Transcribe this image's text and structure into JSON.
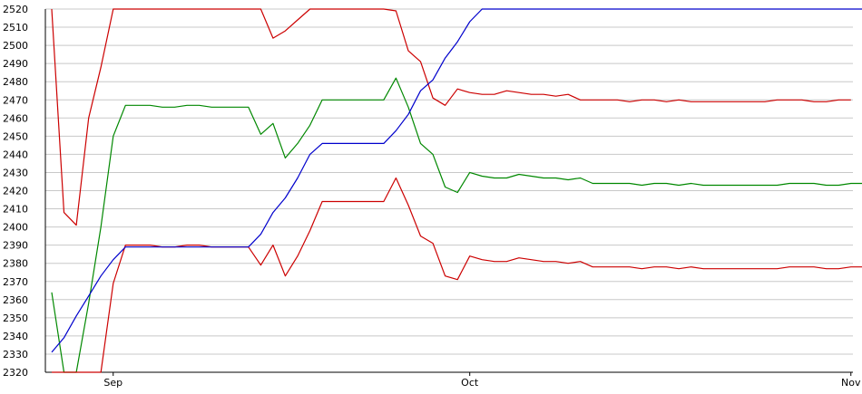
{
  "chart_data": {
    "type": "line",
    "ylim": [
      2320,
      2520
    ],
    "y_ticks": [
      "2320",
      "2330",
      "2340",
      "2350",
      "2360",
      "2370",
      "2380",
      "2390",
      "2400",
      "2410",
      "2420",
      "2430",
      "2440",
      "2450",
      "2460",
      "2470",
      "2480",
      "2490",
      "2500",
      "2510",
      "2520"
    ],
    "x_ticks": [
      "Sep",
      "Oct",
      "Nov"
    ],
    "grid": true,
    "series": [
      {
        "color": "#cc0000",
        "points": [
          [
            0,
            2520
          ],
          [
            1,
            2408
          ],
          [
            2,
            2401
          ],
          [
            3,
            2460
          ],
          [
            4,
            2488
          ],
          [
            5,
            2520
          ],
          [
            6,
            2520
          ],
          [
            7,
            2520
          ],
          [
            8,
            2520
          ],
          [
            9,
            2520
          ],
          [
            10,
            2520
          ],
          [
            11,
            2520
          ],
          [
            12,
            2520
          ],
          [
            13,
            2520
          ],
          [
            14,
            2520
          ],
          [
            15,
            2520
          ],
          [
            16,
            2520
          ],
          [
            17,
            2520
          ],
          [
            18,
            2504
          ],
          [
            19,
            2508
          ],
          [
            20,
            2514
          ],
          [
            21,
            2520
          ],
          [
            22,
            2520
          ],
          [
            23,
            2520
          ],
          [
            24,
            2520
          ],
          [
            25,
            2520
          ],
          [
            26,
            2520
          ],
          [
            27,
            2520
          ],
          [
            28,
            2519
          ],
          [
            29,
            2497
          ],
          [
            30,
            2491
          ],
          [
            31,
            2471
          ],
          [
            32,
            2467
          ],
          [
            33,
            2476
          ],
          [
            34,
            2474
          ],
          [
            35,
            2473
          ],
          [
            36,
            2473
          ],
          [
            37,
            2475
          ],
          [
            38,
            2474
          ],
          [
            39,
            2473
          ],
          [
            40,
            2473
          ],
          [
            41,
            2472
          ],
          [
            42,
            2473
          ],
          [
            43,
            2470
          ],
          [
            44,
            2470
          ],
          [
            45,
            2470
          ],
          [
            46,
            2470
          ],
          [
            47,
            2469
          ],
          [
            48,
            2470
          ],
          [
            49,
            2470
          ],
          [
            50,
            2469
          ],
          [
            51,
            2470
          ],
          [
            52,
            2469
          ],
          [
            53,
            2469
          ],
          [
            54,
            2469
          ],
          [
            55,
            2469
          ],
          [
            56,
            2469
          ],
          [
            57,
            2469
          ],
          [
            58,
            2469
          ],
          [
            59,
            2470
          ],
          [
            60,
            2470
          ],
          [
            61,
            2470
          ],
          [
            62,
            2469
          ],
          [
            63,
            2469
          ],
          [
            64,
            2470
          ],
          [
            65,
            2470
          ]
        ]
      },
      {
        "color": "#008800",
        "points": [
          [
            0,
            2364
          ],
          [
            1,
            2320
          ],
          [
            2,
            2320
          ],
          [
            3,
            2358
          ],
          [
            4,
            2400
          ],
          [
            5,
            2450
          ],
          [
            6,
            2467
          ],
          [
            7,
            2467
          ],
          [
            8,
            2467
          ],
          [
            9,
            2466
          ],
          [
            10,
            2466
          ],
          [
            11,
            2467
          ],
          [
            12,
            2467
          ],
          [
            13,
            2466
          ],
          [
            14,
            2466
          ],
          [
            15,
            2466
          ],
          [
            16,
            2466
          ],
          [
            17,
            2451
          ],
          [
            18,
            2457
          ],
          [
            19,
            2438
          ],
          [
            20,
            2446
          ],
          [
            21,
            2456
          ],
          [
            22,
            2470
          ],
          [
            23,
            2470
          ],
          [
            24,
            2470
          ],
          [
            25,
            2470
          ],
          [
            26,
            2470
          ],
          [
            27,
            2470
          ],
          [
            28,
            2482
          ],
          [
            29,
            2466
          ],
          [
            30,
            2446
          ],
          [
            31,
            2440
          ],
          [
            32,
            2422
          ],
          [
            33,
            2419
          ],
          [
            34,
            2430
          ],
          [
            35,
            2428
          ],
          [
            36,
            2427
          ],
          [
            37,
            2427
          ],
          [
            38,
            2429
          ],
          [
            39,
            2428
          ],
          [
            40,
            2427
          ],
          [
            41,
            2427
          ],
          [
            42,
            2426
          ],
          [
            43,
            2427
          ],
          [
            44,
            2424
          ],
          [
            45,
            2424
          ],
          [
            46,
            2424
          ],
          [
            47,
            2424
          ],
          [
            48,
            2423
          ],
          [
            49,
            2424
          ],
          [
            50,
            2424
          ],
          [
            51,
            2423
          ],
          [
            52,
            2424
          ],
          [
            53,
            2423
          ],
          [
            54,
            2423
          ],
          [
            55,
            2423
          ],
          [
            56,
            2423
          ],
          [
            57,
            2423
          ],
          [
            58,
            2423
          ],
          [
            59,
            2423
          ],
          [
            60,
            2424
          ],
          [
            61,
            2424
          ],
          [
            62,
            2424
          ],
          [
            63,
            2423
          ],
          [
            64,
            2423
          ],
          [
            65,
            2424
          ],
          [
            66,
            2424
          ]
        ]
      },
      {
        "color": "#cc0000",
        "points": [
          [
            0,
            2320
          ],
          [
            1,
            2320
          ],
          [
            2,
            2320
          ],
          [
            3,
            2320
          ],
          [
            4,
            2320
          ],
          [
            5,
            2369
          ],
          [
            6,
            2390
          ],
          [
            7,
            2390
          ],
          [
            8,
            2390
          ],
          [
            9,
            2389
          ],
          [
            10,
            2389
          ],
          [
            11,
            2390
          ],
          [
            12,
            2390
          ],
          [
            13,
            2389
          ],
          [
            14,
            2389
          ],
          [
            15,
            2389
          ],
          [
            16,
            2389
          ],
          [
            17,
            2379
          ],
          [
            18,
            2390
          ],
          [
            19,
            2373
          ],
          [
            20,
            2384
          ],
          [
            21,
            2398
          ],
          [
            22,
            2414
          ],
          [
            23,
            2414
          ],
          [
            24,
            2414
          ],
          [
            25,
            2414
          ],
          [
            26,
            2414
          ],
          [
            27,
            2414
          ],
          [
            28,
            2427
          ],
          [
            29,
            2412
          ],
          [
            30,
            2395
          ],
          [
            31,
            2391
          ],
          [
            32,
            2373
          ],
          [
            33,
            2371
          ],
          [
            34,
            2384
          ],
          [
            35,
            2382
          ],
          [
            36,
            2381
          ],
          [
            37,
            2381
          ],
          [
            38,
            2383
          ],
          [
            39,
            2382
          ],
          [
            40,
            2381
          ],
          [
            41,
            2381
          ],
          [
            42,
            2380
          ],
          [
            43,
            2381
          ],
          [
            44,
            2378
          ],
          [
            45,
            2378
          ],
          [
            46,
            2378
          ],
          [
            47,
            2378
          ],
          [
            48,
            2377
          ],
          [
            49,
            2378
          ],
          [
            50,
            2378
          ],
          [
            51,
            2377
          ],
          [
            52,
            2378
          ],
          [
            53,
            2377
          ],
          [
            54,
            2377
          ],
          [
            55,
            2377
          ],
          [
            56,
            2377
          ],
          [
            57,
            2377
          ],
          [
            58,
            2377
          ],
          [
            59,
            2377
          ],
          [
            60,
            2378
          ],
          [
            61,
            2378
          ],
          [
            62,
            2378
          ],
          [
            63,
            2377
          ],
          [
            64,
            2377
          ],
          [
            65,
            2378
          ],
          [
            66,
            2378
          ]
        ]
      },
      {
        "color": "#0000cc",
        "points": [
          [
            0,
            2331
          ],
          [
            1,
            2339
          ],
          [
            2,
            2351
          ],
          [
            3,
            2362
          ],
          [
            4,
            2373
          ],
          [
            5,
            2382
          ],
          [
            6,
            2389
          ],
          [
            7,
            2389
          ],
          [
            8,
            2389
          ],
          [
            9,
            2389
          ],
          [
            10,
            2389
          ],
          [
            11,
            2389
          ],
          [
            12,
            2389
          ],
          [
            13,
            2389
          ],
          [
            14,
            2389
          ],
          [
            15,
            2389
          ],
          [
            16,
            2389
          ],
          [
            17,
            2396
          ],
          [
            18,
            2408
          ],
          [
            19,
            2416
          ],
          [
            20,
            2427
          ],
          [
            21,
            2440
          ],
          [
            22,
            2446
          ],
          [
            23,
            2446
          ],
          [
            24,
            2446
          ],
          [
            25,
            2446
          ],
          [
            26,
            2446
          ],
          [
            27,
            2446
          ],
          [
            28,
            2453
          ],
          [
            29,
            2462
          ],
          [
            30,
            2475
          ],
          [
            31,
            2481
          ],
          [
            32,
            2493
          ],
          [
            33,
            2502
          ],
          [
            34,
            2513
          ],
          [
            35,
            2520
          ],
          [
            36,
            2520
          ],
          [
            37,
            2520
          ],
          [
            38,
            2520
          ],
          [
            39,
            2520
          ],
          [
            40,
            2520
          ],
          [
            41,
            2520
          ],
          [
            42,
            2520
          ],
          [
            43,
            2520
          ],
          [
            44,
            2520
          ],
          [
            45,
            2520
          ],
          [
            46,
            2520
          ],
          [
            47,
            2520
          ],
          [
            48,
            2520
          ],
          [
            49,
            2520
          ],
          [
            50,
            2520
          ],
          [
            51,
            2520
          ],
          [
            52,
            2520
          ],
          [
            53,
            2520
          ],
          [
            54,
            2520
          ],
          [
            55,
            2520
          ],
          [
            56,
            2520
          ],
          [
            57,
            2520
          ],
          [
            58,
            2520
          ],
          [
            59,
            2520
          ],
          [
            60,
            2520
          ],
          [
            61,
            2520
          ],
          [
            62,
            2520
          ],
          [
            63,
            2520
          ],
          [
            64,
            2520
          ],
          [
            65,
            2520
          ],
          [
            66,
            2520
          ]
        ]
      }
    ]
  }
}
